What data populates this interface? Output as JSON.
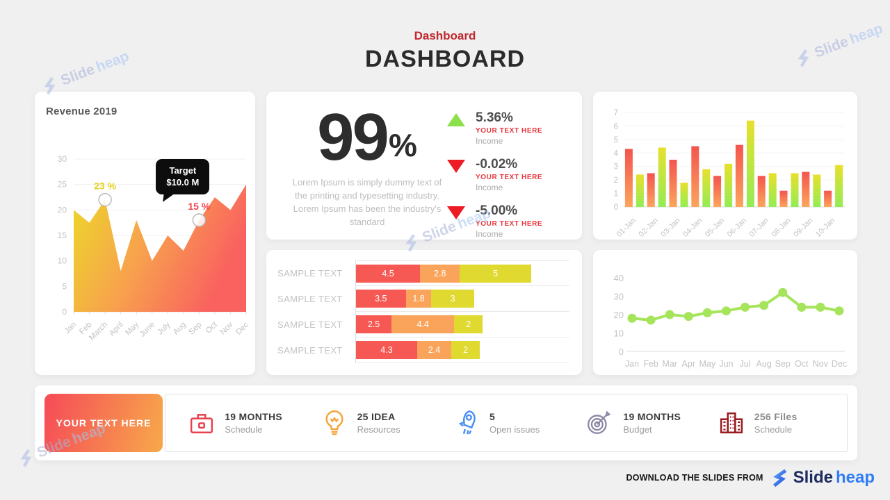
{
  "header": {
    "eyebrow": "Dashboard",
    "title": "DASHBOARD"
  },
  "watermark": {
    "part1": "Slide",
    "part2": "heap"
  },
  "middle_card": {
    "big_value": "99",
    "big_unit": "%",
    "description": "Lorem Ipsum is simply dummy text of the printing and typesetting industry. Lorem Ipsum has been the industry's standard",
    "indicators": [
      {
        "value": "5.36%",
        "direction": "up",
        "color": "#8ce04b",
        "label": "YOUR TEXT HERE",
        "sublabel": "Income"
      },
      {
        "value": "-0.02%",
        "direction": "down",
        "color": "#ed1c24",
        "label": "YOUR TEXT HERE",
        "sublabel": "Income"
      },
      {
        "value": "-5.00%",
        "direction": "down",
        "color": "#ed1c24",
        "label": "YOUR TEXT HERE",
        "sublabel": "Income"
      }
    ]
  },
  "bottom_strip": {
    "button_label": "YOUR TEXT HERE",
    "stats": [
      {
        "icon": "briefcase-icon",
        "value": "19 MONTHS",
        "label": "Schedule"
      },
      {
        "icon": "lightbulb-icon",
        "value": "25 IDEA",
        "label": "Resources"
      },
      {
        "icon": "rocket-icon",
        "value": "5",
        "label": "Open issues"
      },
      {
        "icon": "target-icon",
        "value": "19 MONTHS",
        "label": "Budget"
      },
      {
        "icon": "buildings-icon",
        "value": "256 Files",
        "label": "Schedule"
      }
    ]
  },
  "footer": {
    "label": "DOWNLOAD THE SLIDES FROM",
    "brand_part1": "Slide",
    "brand_part2": "heap"
  },
  "colors": {
    "accent_red": "#c1272d",
    "area_yellow": "#ecd928",
    "area_orange": "#f8a04e",
    "area_red": "#f9625f",
    "bar_red_top": "#f4544e",
    "bar_red_bottom": "#fba55c",
    "bar_yellow_top": "#e7e02c",
    "bar_green_bottom": "#93ec55",
    "line_green": "#a5e45b",
    "stacked": [
      "#f65953",
      "#f9a35b",
      "#e0d92f"
    ]
  },
  "chart_data": [
    {
      "type": "area",
      "title": "Revenue 2019",
      "x": [
        "Jan",
        "Feb",
        "March",
        "April",
        "May",
        "June",
        "July",
        "Aug",
        "Sep",
        "Oct",
        "Nov",
        "Dec"
      ],
      "values": [
        20,
        17.5,
        22,
        8,
        18,
        10,
        15,
        12,
        18,
        22.5,
        20,
        25
      ],
      "ylim": [
        0,
        30
      ],
      "yticks": [
        0,
        5,
        10,
        15,
        20,
        25,
        30
      ],
      "annotations": [
        {
          "label": "23 %",
          "index": 2,
          "color": "#e3d21c"
        },
        {
          "label": "15 %",
          "index": 8,
          "color": "#f2444b"
        }
      ],
      "tooltip": {
        "line1": "Target",
        "line2": "$10.0 M",
        "index": 8
      }
    },
    {
      "type": "bar",
      "categories": [
        "01-Jan",
        "02-Jan",
        "03-Jan",
        "04-Jan",
        "05-Jan",
        "06-Jan",
        "07-Jan",
        "08-Jan",
        "09-Jan",
        "10-Jan"
      ],
      "series": [
        {
          "name": "series-red",
          "values": [
            4.3,
            2.5,
            3.5,
            4.5,
            2.3,
            4.6,
            2.3,
            1.2,
            2.6,
            1.2
          ]
        },
        {
          "name": "series-yellow",
          "values": [
            2.4,
            4.4,
            1.8,
            2.8,
            3.2,
            6.4,
            2.5,
            2.5,
            2.4,
            3.1
          ]
        }
      ],
      "ylim": [
        0,
        7
      ],
      "yticks": [
        0,
        1,
        2,
        3,
        4,
        5,
        6,
        7
      ]
    },
    {
      "type": "stacked-bar-horizontal",
      "xmax": 15,
      "rows": [
        {
          "label": "SAMPLE TEXT",
          "values": [
            4.5,
            2.8,
            5
          ]
        },
        {
          "label": "SAMPLE TEXT",
          "values": [
            3.5,
            1.8,
            3
          ]
        },
        {
          "label": "SAMPLE TEXT",
          "values": [
            2.5,
            4.4,
            2
          ]
        },
        {
          "label": "SAMPLE TEXT",
          "values": [
            4.3,
            2.4,
            2
          ]
        }
      ]
    },
    {
      "type": "line",
      "x": [
        "Jan",
        "Feb",
        "Mar",
        "Apr",
        "May",
        "Jun",
        "Jul",
        "Aug",
        "Sep",
        "Oct",
        "Nov",
        "Dec"
      ],
      "values": [
        18,
        17,
        20,
        19,
        21,
        22,
        24,
        25,
        32,
        24,
        24,
        22
      ],
      "ylim": [
        0,
        40
      ],
      "yticks": [
        0,
        10,
        20,
        30,
        40
      ]
    }
  ]
}
